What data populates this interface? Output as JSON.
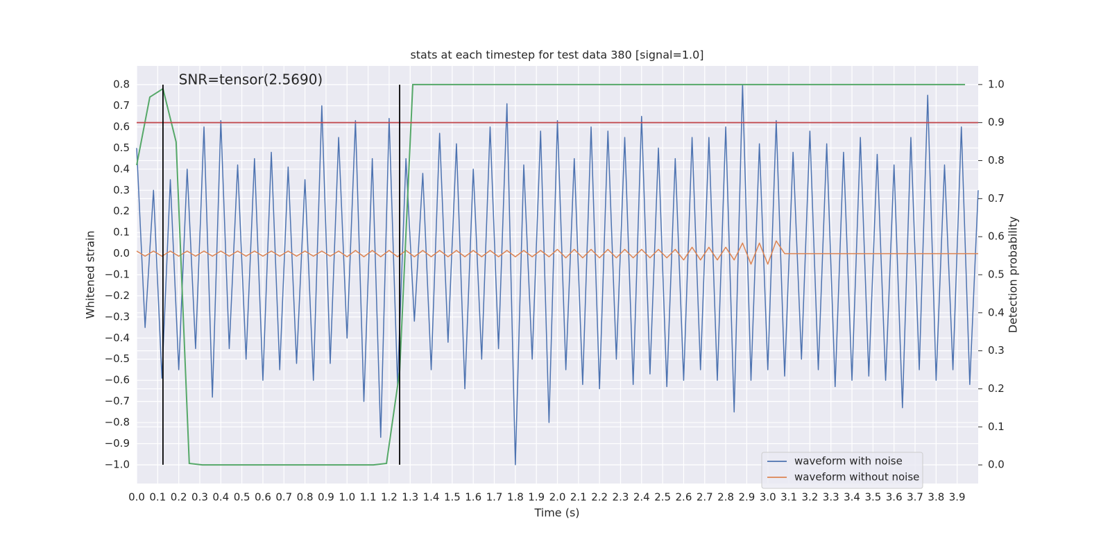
{
  "chart_data": {
    "type": "line",
    "title": "stats at each timestep for test data 380 [signal=1.0]",
    "x_label": "Time (s)",
    "y_label": "Whitened strain",
    "y2_label": "Detection probability",
    "grid": true,
    "legend_position": "lower right",
    "xlim": [
      0,
      4.0
    ],
    "ylim": [
      -1.089,
      0.889
    ],
    "y2lim": [
      -0.049,
      1.049
    ],
    "xticks": [
      {
        "value": 0,
        "label": "0.0"
      },
      {
        "value": 0.1,
        "label": "0.1"
      },
      {
        "value": 0.2,
        "label": "0.2"
      },
      {
        "value": 0.3,
        "label": "0.3"
      },
      {
        "value": 0.4,
        "label": "0.4"
      },
      {
        "value": 0.5,
        "label": "0.5"
      },
      {
        "value": 0.6,
        "label": "0.6"
      },
      {
        "value": 0.7,
        "label": "0.7"
      },
      {
        "value": 0.8,
        "label": "0.8"
      },
      {
        "value": 0.9,
        "label": "0.9"
      },
      {
        "value": 1,
        "label": "1.0"
      },
      {
        "value": 1.1,
        "label": "1.1"
      },
      {
        "value": 1.2,
        "label": "1.2"
      },
      {
        "value": 1.3,
        "label": "1.3"
      },
      {
        "value": 1.4,
        "label": "1.4"
      },
      {
        "value": 1.5,
        "label": "1.5"
      },
      {
        "value": 1.6,
        "label": "1.6"
      },
      {
        "value": 1.7,
        "label": "1.7"
      },
      {
        "value": 1.8,
        "label": "1.8"
      },
      {
        "value": 1.9,
        "label": "1.9"
      },
      {
        "value": 2,
        "label": "2.0"
      },
      {
        "value": 2.1,
        "label": "2.1"
      },
      {
        "value": 2.2,
        "label": "2.2"
      },
      {
        "value": 2.3,
        "label": "2.3"
      },
      {
        "value": 2.4,
        "label": "2.4"
      },
      {
        "value": 2.5,
        "label": "2.5"
      },
      {
        "value": 2.6,
        "label": "2.6"
      },
      {
        "value": 2.7,
        "label": "2.7"
      },
      {
        "value": 2.8,
        "label": "2.8"
      },
      {
        "value": 2.9,
        "label": "2.9"
      },
      {
        "value": 3,
        "label": "3.0"
      },
      {
        "value": 3.1,
        "label": "3.1"
      },
      {
        "value": 3.2,
        "label": "3.2"
      },
      {
        "value": 3.3,
        "label": "3.3"
      },
      {
        "value": 3.4,
        "label": "3.4"
      },
      {
        "value": 3.5,
        "label": "3.5"
      },
      {
        "value": 3.6,
        "label": "3.6"
      },
      {
        "value": 3.7,
        "label": "3.7"
      },
      {
        "value": 3.8,
        "label": "3.8"
      },
      {
        "value": 3.9,
        "label": "3.9"
      }
    ],
    "yticks": [
      {
        "value": -1,
        "label": "−1.0"
      },
      {
        "value": -0.9,
        "label": "−0.9"
      },
      {
        "value": -0.8,
        "label": "−0.8"
      },
      {
        "value": -0.7,
        "label": "−0.7"
      },
      {
        "value": -0.6,
        "label": "−0.6"
      },
      {
        "value": -0.5,
        "label": "−0.5"
      },
      {
        "value": -0.4,
        "label": "−0.4"
      },
      {
        "value": -0.3,
        "label": "−0.3"
      },
      {
        "value": -0.2,
        "label": "−0.2"
      },
      {
        "value": -0.1,
        "label": "−0.1"
      },
      {
        "value": 0,
        "label": "0.0"
      },
      {
        "value": 0.1,
        "label": "0.1"
      },
      {
        "value": 0.2,
        "label": "0.2"
      },
      {
        "value": 0.3,
        "label": "0.3"
      },
      {
        "value": 0.4,
        "label": "0.4"
      },
      {
        "value": 0.5,
        "label": "0.5"
      },
      {
        "value": 0.6,
        "label": "0.6"
      },
      {
        "value": 0.7,
        "label": "0.7"
      },
      {
        "value": 0.8,
        "label": "0.8"
      }
    ],
    "y2ticks": [
      {
        "value": 0,
        "label": "0.0"
      },
      {
        "value": 0.1,
        "label": "0.1"
      },
      {
        "value": 0.2,
        "label": "0.2"
      },
      {
        "value": 0.3,
        "label": "0.3"
      },
      {
        "value": 0.4,
        "label": "0.4"
      },
      {
        "value": 0.5,
        "label": "0.5"
      },
      {
        "value": 0.6,
        "label": "0.6"
      },
      {
        "value": 0.7,
        "label": "0.7"
      },
      {
        "value": 0.8,
        "label": "0.8"
      },
      {
        "value": 0.9,
        "label": "0.9"
      },
      {
        "value": 1,
        "label": "1.0"
      }
    ],
    "x": [
      0,
      0.04,
      0.08,
      0.12,
      0.16,
      0.2,
      0.24,
      0.28,
      0.32,
      0.36,
      0.4,
      0.44,
      0.48,
      0.52,
      0.56,
      0.6,
      0.64,
      0.68,
      0.72,
      0.76,
      0.8,
      0.84,
      0.88,
      0.92,
      0.96,
      1,
      1.04,
      1.08,
      1.12,
      1.16,
      1.2,
      1.24,
      1.28,
      1.32,
      1.36,
      1.4,
      1.44,
      1.48,
      1.52,
      1.56,
      1.6,
      1.64,
      1.68,
      1.72,
      1.76,
      1.8,
      1.84,
      1.88,
      1.92,
      1.96,
      2,
      2.04,
      2.08,
      2.12,
      2.16,
      2.2,
      2.24,
      2.28,
      2.32,
      2.36,
      2.4,
      2.44,
      2.48,
      2.52,
      2.56,
      2.6,
      2.64,
      2.68,
      2.72,
      2.76,
      2.8,
      2.84,
      2.88,
      2.92,
      2.96,
      3,
      3.04,
      3.08,
      3.12,
      3.16,
      3.2,
      3.24,
      3.28,
      3.32,
      3.36,
      3.4,
      3.44,
      3.48,
      3.52,
      3.56,
      3.6,
      3.64,
      3.68,
      3.72,
      3.76,
      3.8,
      3.84,
      3.88,
      3.92,
      3.96,
      4
    ],
    "series": [
      {
        "name": "waveform with noise",
        "color": "#4c72b0",
        "values": [
          0.5,
          -0.35,
          0.3,
          -0.59,
          0.35,
          -0.55,
          0.4,
          -0.45,
          0.6,
          -0.68,
          0.63,
          -0.45,
          0.42,
          -0.5,
          0.45,
          -0.6,
          0.48,
          -0.55,
          0.41,
          -0.52,
          0.35,
          -0.6,
          0.7,
          -0.52,
          0.55,
          -0.4,
          0.63,
          -0.7,
          0.45,
          -0.87,
          0.64,
          -0.62,
          0.45,
          -0.32,
          0.38,
          -0.55,
          0.57,
          -0.42,
          0.52,
          -0.64,
          0.4,
          -0.5,
          0.6,
          -0.45,
          0.71,
          -1.0,
          0.42,
          -0.5,
          0.58,
          -0.8,
          0.63,
          -0.55,
          0.45,
          -0.62,
          0.6,
          -0.64,
          0.58,
          -0.5,
          0.55,
          -0.62,
          0.65,
          -0.57,
          0.5,
          -0.63,
          0.45,
          -0.6,
          0.55,
          -0.55,
          0.55,
          -0.6,
          0.6,
          -0.75,
          0.8,
          -0.6,
          0.52,
          -0.55,
          0.63,
          -0.58,
          0.48,
          -0.5,
          0.58,
          -0.55,
          0.52,
          -0.63,
          0.48,
          -0.6,
          0.55,
          -0.58,
          0.47,
          -0.6,
          0.42,
          -0.73,
          0.55,
          -0.55,
          0.75,
          -0.6,
          0.42,
          -0.55,
          0.6,
          -0.62,
          0.3
        ]
      },
      {
        "name": "waveform without noise",
        "color": "#dd8452",
        "values": [
          0.012,
          -0.012,
          0.012,
          -0.012,
          0.012,
          -0.012,
          0.012,
          -0.012,
          0.012,
          -0.012,
          0.012,
          -0.012,
          0.012,
          -0.012,
          0.012,
          -0.012,
          0.012,
          -0.012,
          0.012,
          -0.012,
          0.012,
          -0.012,
          0.012,
          -0.012,
          0.012,
          -0.015,
          0.015,
          -0.015,
          0.015,
          -0.015,
          0.015,
          -0.015,
          0.015,
          -0.015,
          0.015,
          -0.015,
          0.015,
          -0.015,
          0.015,
          -0.015,
          0.015,
          -0.015,
          0.015,
          -0.015,
          0.015,
          -0.015,
          0.015,
          -0.015,
          0.015,
          -0.015,
          0.02,
          -0.02,
          0.02,
          -0.02,
          0.02,
          -0.02,
          0.02,
          -0.02,
          0.02,
          -0.02,
          0.02,
          -0.02,
          0.02,
          -0.02,
          0.02,
          -0.03,
          0.03,
          -0.03,
          0.03,
          -0.03,
          0.03,
          -0.03,
          0.05,
          -0.05,
          0.05,
          -0.05,
          0.06,
          0,
          0,
          0,
          0,
          0,
          0,
          0,
          0,
          0,
          0,
          0,
          0,
          0,
          0,
          0,
          0,
          0,
          0,
          0,
          0,
          0,
          0,
          0,
          0
        ]
      }
    ],
    "detection_probability": {
      "axis": "y2",
      "color": "#55a868",
      "x": [
        0,
        0.0625,
        0.125,
        0.1875,
        0.25,
        0.3125,
        1.125,
        1.1875,
        1.25,
        1.3125,
        3.9375
      ],
      "values": [
        0.788,
        0.967,
        0.989,
        0.849,
        0.004,
        0.0,
        0.0,
        0.004,
        0.246,
        1.0,
        1.0
      ]
    },
    "threshold": {
      "axis": "y2",
      "value": 0.9,
      "color": "#c44e52"
    },
    "vlines": {
      "x": [
        0.125,
        1.25
      ],
      "ymin": -1.0,
      "ymax": 0.8,
      "color": "#000000"
    },
    "annotation": {
      "text": "SNR=tensor(2.5690)",
      "x": 0.2,
      "y": 0.82
    }
  }
}
